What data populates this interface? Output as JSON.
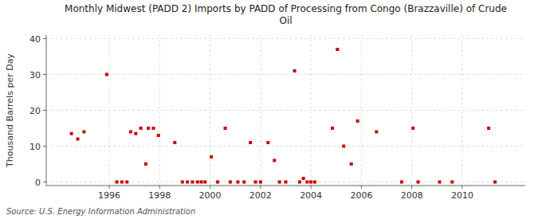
{
  "chart_data": {
    "type": "scatter",
    "title": "Monthly Midwest (PADD 2) Imports by PADD of Processing from Congo (Brazzaville) of Crude\nOil",
    "ylabel": "Thousand Barrels per Day",
    "annotations": [
      "Source: U.S. Energy Information Administration"
    ],
    "color": "#cc0000",
    "marker": "square",
    "grid": true,
    "xlim": [
      1993.5,
      2012.5
    ],
    "ylim": [
      -1,
      41
    ],
    "xticks": [
      1996,
      1998,
      2000,
      2002,
      2004,
      2006,
      2008,
      2010
    ],
    "yticks": [
      0,
      10,
      20,
      30,
      40
    ],
    "x": [
      1994.5,
      1994.75,
      1995.0,
      1995.9,
      1996.3,
      1996.5,
      1996.7,
      1996.85,
      1997.05,
      1997.25,
      1997.55,
      1997.75,
      1997.95,
      1997.45,
      1998.6,
      1998.9,
      1999.1,
      1999.3,
      1999.5,
      1999.65,
      1999.8,
      2000.05,
      2000.3,
      2000.6,
      2000.8,
      2001.1,
      2001.35,
      2001.6,
      2001.8,
      2002.0,
      2002.3,
      2002.55,
      2002.75,
      2003.0,
      2003.35,
      2003.55,
      2003.7,
      2003.85,
      2004.0,
      2004.15,
      2004.85,
      2005.05,
      2005.3,
      2005.6,
      2005.85,
      2006.6,
      2007.6,
      2008.05,
      2008.25,
      2009.1,
      2009.6,
      2011.05,
      2011.3
    ],
    "values": [
      13.5,
      12.0,
      14.0,
      30.0,
      0.0,
      0.0,
      0.0,
      14.0,
      13.5,
      15.0,
      15.0,
      15.0,
      13.0,
      5.0,
      11.0,
      0.0,
      0.0,
      0.0,
      0.0,
      0.0,
      0.0,
      7.0,
      0.0,
      15.0,
      0.0,
      0.0,
      0.0,
      11.0,
      0.0,
      0.0,
      11.0,
      6.0,
      0.0,
      0.0,
      31.0,
      0.0,
      1.0,
      0.0,
      0.0,
      0.0,
      15.0,
      37.0,
      10.0,
      5.0,
      17.0,
      14.0,
      0.0,
      15.0,
      0.0,
      0.0,
      0.0,
      15.0,
      0.0
    ]
  }
}
